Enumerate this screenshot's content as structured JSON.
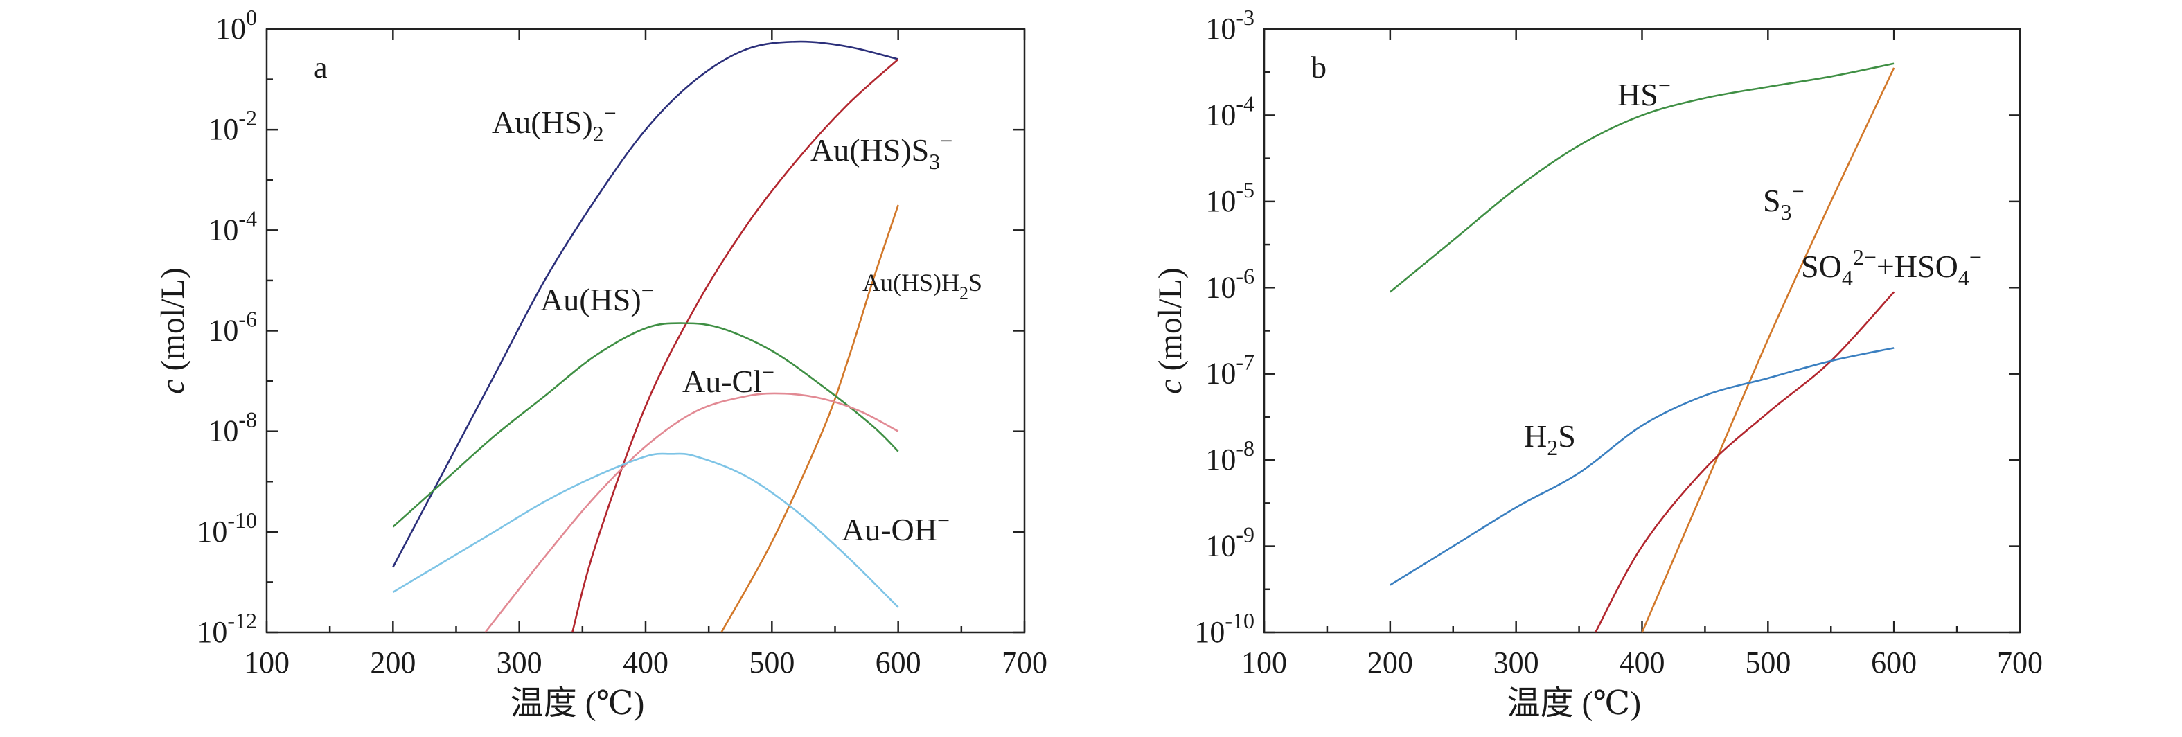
{
  "chart_data": [
    {
      "type": "line",
      "panel_label": "a",
      "xlabel": "温度 (℃)",
      "ylabel": "c (mol/L)",
      "xlim": [
        100,
        700
      ],
      "x_ticks": [
        100,
        200,
        300,
        400,
        500,
        600,
        700
      ],
      "y_scale": "log",
      "ylim_exponent": [
        -12,
        0
      ],
      "y_tick_exponents": [
        -12,
        -10,
        -8,
        -6,
        -4,
        -2,
        0
      ],
      "y_tick_labels": [
        "10-12",
        "10-10",
        "10-8",
        "10-6",
        "10-4",
        "10-2",
        "100"
      ],
      "grid": false,
      "series": [
        {
          "label": "Au(HS)2−",
          "color": "#2b2f7a",
          "x": [
            200,
            240,
            280,
            320,
            360,
            400,
            440,
            480,
            520,
            560,
            600
          ],
          "log10_y": [
            -10.7,
            -8.8,
            -6.9,
            -5.0,
            -3.4,
            -2.0,
            -1.0,
            -0.4,
            -0.25,
            -0.35,
            -0.6
          ]
        },
        {
          "label": "Au(HS)S3−",
          "color": "#b2262e",
          "x": [
            342,
            360,
            400,
            440,
            480,
            520,
            560,
            600
          ],
          "log10_y": [
            -12,
            -10.3,
            -7.5,
            -5.5,
            -3.9,
            -2.6,
            -1.5,
            -0.6
          ]
        },
        {
          "label": "Au(HS)H2S",
          "color": "#d2782a",
          "x": [
            460,
            500,
            540,
            560,
            580,
            600
          ],
          "log10_y": [
            -12,
            -10.2,
            -8.0,
            -6.6,
            -5.0,
            -3.5
          ]
        },
        {
          "label": "Au(HS)−",
          "color": "#3f8f44",
          "x": [
            200,
            240,
            280,
            320,
            360,
            400,
            430,
            460,
            500,
            540,
            580,
            600
          ],
          "log10_y": [
            -9.9,
            -9.0,
            -8.1,
            -7.3,
            -6.5,
            -5.95,
            -5.85,
            -5.95,
            -6.4,
            -7.1,
            -7.9,
            -8.4
          ]
        },
        {
          "label": "Au-Cl−",
          "color": "#e28a94",
          "x": [
            273,
            320,
            360,
            400,
            440,
            480,
            510,
            540,
            570,
            600
          ],
          "log10_y": [
            -12,
            -10.5,
            -9.3,
            -8.3,
            -7.6,
            -7.3,
            -7.25,
            -7.35,
            -7.6,
            -8.0
          ]
        },
        {
          "label": "Au-OH−",
          "color": "#7ec4e6",
          "x": [
            200,
            240,
            280,
            320,
            360,
            400,
            420,
            440,
            480,
            520,
            560,
            600
          ],
          "log10_y": [
            -11.2,
            -10.6,
            -10.0,
            -9.4,
            -8.9,
            -8.5,
            -8.45,
            -8.5,
            -8.9,
            -9.6,
            -10.5,
            -11.5
          ]
        }
      ],
      "annotations": [
        {
          "text": "Au(HS)",
          "sub": "2",
          "sup": "−",
          "series": "Au(HS)2−"
        },
        {
          "text": "Au(HS)S",
          "sub": "3",
          "sup": "−",
          "series": "Au(HS)S3−"
        },
        {
          "text": "Au(HS)H",
          "sub": "2",
          "tail": "S",
          "series": "Au(HS)H2S"
        },
        {
          "text": "Au(HS)",
          "sup": "−",
          "series": "Au(HS)−"
        },
        {
          "text": "Au-Cl",
          "sup": "−",
          "series": "Au-Cl−"
        },
        {
          "text": "Au-OH",
          "sup": "−",
          "series": "Au-OH−"
        }
      ]
    },
    {
      "type": "line",
      "panel_label": "b",
      "xlabel": "温度 (℃)",
      "ylabel": "c (mol/L)",
      "xlim": [
        100,
        700
      ],
      "x_ticks": [
        100,
        200,
        300,
        400,
        500,
        600,
        700
      ],
      "y_scale": "log",
      "ylim_exponent": [
        -10,
        -3
      ],
      "y_tick_exponents": [
        -10,
        -9,
        -8,
        -7,
        -6,
        -5,
        -4,
        -3
      ],
      "y_tick_labels": [
        "10-10",
        "10-9",
        "10-8",
        "10-7",
        "10-6",
        "10-5",
        "10-4",
        "10-3"
      ],
      "grid": false,
      "series": [
        {
          "label": "HS−",
          "color": "#3f8f44",
          "x": [
            200,
            250,
            300,
            350,
            400,
            450,
            500,
            550,
            600
          ],
          "log10_y": [
            -6.05,
            -5.45,
            -4.85,
            -4.35,
            -4.0,
            -3.8,
            -3.67,
            -3.55,
            -3.4
          ]
        },
        {
          "label": "S3−",
          "color": "#d2782a",
          "x": [
            400,
            450,
            500,
            550,
            600
          ],
          "log10_y": [
            -10.0,
            -8.3,
            -6.6,
            -5.0,
            -3.45
          ]
        },
        {
          "label": "SO42−+HSO4−",
          "color": "#b2262e",
          "x": [
            363,
            400,
            450,
            500,
            550,
            600
          ],
          "log10_y": [
            -10.0,
            -9.0,
            -8.1,
            -7.45,
            -6.85,
            -6.05
          ]
        },
        {
          "label": "H2S",
          "color": "#3a7fc0",
          "x": [
            200,
            250,
            300,
            350,
            400,
            450,
            500,
            550,
            600
          ],
          "log10_y": [
            -9.45,
            -9.0,
            -8.55,
            -8.15,
            -7.6,
            -7.25,
            -7.05,
            -6.85,
            -6.7
          ]
        }
      ],
      "annotations": [
        {
          "text": "HS",
          "sup": "−",
          "series": "HS−"
        },
        {
          "text": "S",
          "sub": "3",
          "sup": "−",
          "series": "S3−"
        },
        {
          "text": "SO",
          "sub": "4",
          "sup": "2−",
          "tail": "+HSO",
          "sub2": "4",
          "sup2": "−",
          "series": "SO42−+HSO4−"
        },
        {
          "text": "H",
          "sub": "2",
          "tail": "S",
          "series": "H2S"
        }
      ]
    }
  ]
}
